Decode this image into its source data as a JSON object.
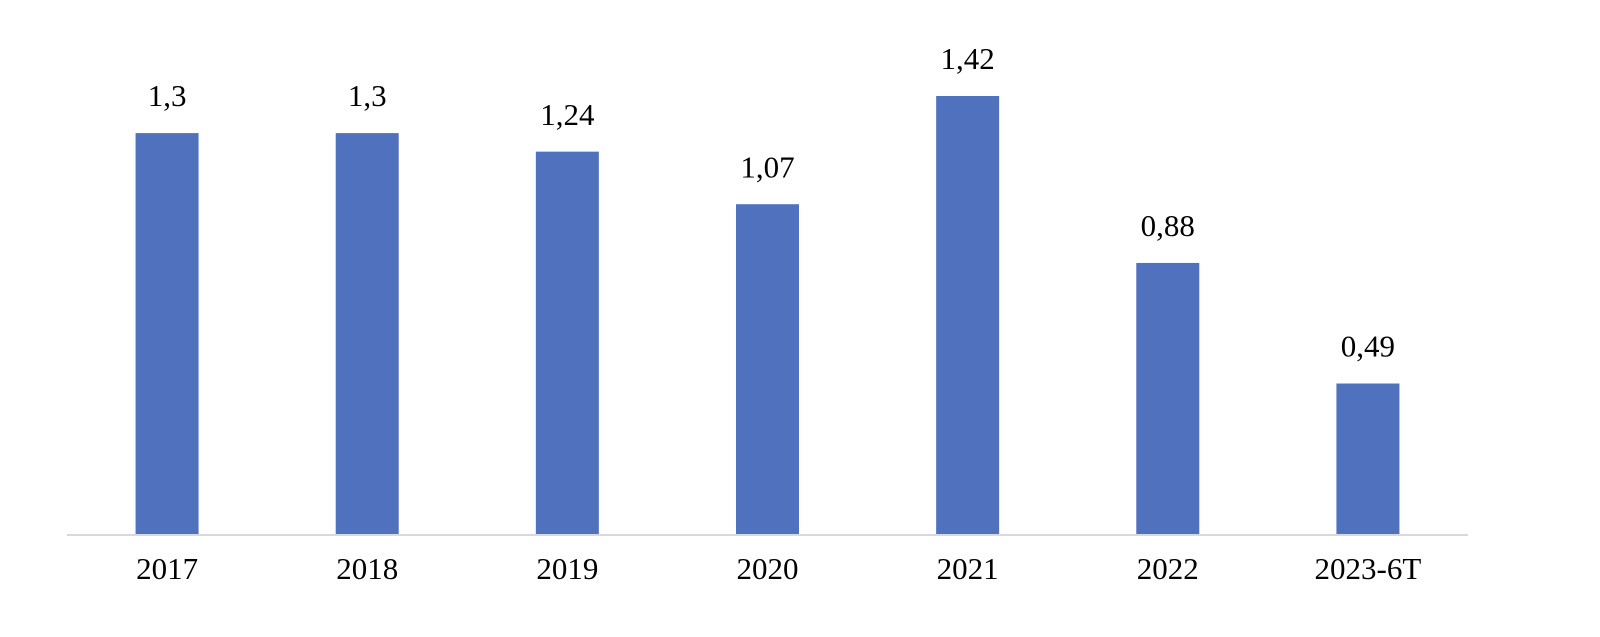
{
  "chart_data": {
    "type": "bar",
    "categories": [
      "2017",
      "2018",
      "2019",
      "2020",
      "2021",
      "2022",
      "2023-6T"
    ],
    "values": [
      1.3,
      1.3,
      1.24,
      1.07,
      1.42,
      0.88,
      0.49
    ],
    "value_labels": [
      "1,3",
      "1,3",
      "1,24",
      "1,07",
      "1,42",
      "0,88",
      "0,49"
    ],
    "color": "#4f71be"
  }
}
